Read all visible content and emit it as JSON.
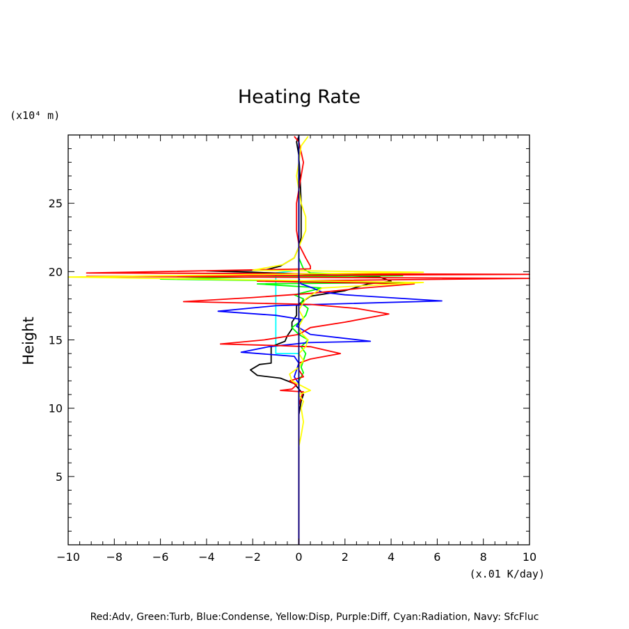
{
  "chart_data": {
    "type": "line",
    "title": "Heating Rate",
    "xlabel": "(x.01 K/day)",
    "ylabel": "Height",
    "y_unit": "(x10⁴ m)",
    "xlim": [
      -10,
      10
    ],
    "ylim": [
      0,
      30
    ],
    "x_ticks": [
      "−10",
      "−8",
      "−6",
      "−4",
      "−2",
      "0",
      "2",
      "4",
      "6",
      "8",
      "10"
    ],
    "y_ticks": [
      "5",
      "10",
      "15",
      "20",
      "25"
    ],
    "grid": false,
    "legend_caption": "Red:Adv, Green:Turb, Blue:Condense, Yellow:Disp, Purple:Diff, Cyan:Radiation, Navy: SfcFluc",
    "series": [
      {
        "color": "#00ffff",
        "points": [
          [
            0,
            0
          ],
          [
            0,
            14
          ],
          [
            -1.0,
            14
          ],
          [
            -1.0,
            19.9
          ],
          [
            0,
            20.1
          ],
          [
            0,
            30
          ]
        ]
      },
      {
        "color": "#000000",
        "points": [
          [
            0,
            0
          ],
          [
            0,
            9.5
          ],
          [
            0.1,
            10.5
          ],
          [
            0.2,
            11
          ],
          [
            0,
            11.4
          ],
          [
            -0.2,
            11.8
          ],
          [
            -0.8,
            12.2
          ],
          [
            -1.8,
            12.4
          ],
          [
            -2.1,
            12.8
          ],
          [
            -1.7,
            13.2
          ],
          [
            -1.2,
            13.3
          ],
          [
            -1.2,
            13.8
          ],
          [
            -1.2,
            14.5
          ],
          [
            -0.6,
            14.9
          ],
          [
            -0.5,
            15.3
          ],
          [
            -0.3,
            15.8
          ],
          [
            -0.3,
            16.3
          ],
          [
            -0.1,
            16.8
          ],
          [
            -0.1,
            17.5
          ],
          [
            0.5,
            18.2
          ],
          [
            2.0,
            18.6
          ],
          [
            3.0,
            19.1
          ],
          [
            4.0,
            19.3
          ],
          [
            3.5,
            19.6
          ],
          [
            0.5,
            19.8
          ],
          [
            -2.0,
            19.95
          ],
          [
            -4.0,
            20.05
          ],
          [
            -1.5,
            20.1
          ],
          [
            -0.8,
            20.4
          ],
          [
            -0.2,
            21.0
          ],
          [
            0,
            21.8
          ],
          [
            0.1,
            22.5
          ],
          [
            0.1,
            24
          ],
          [
            0.1,
            25
          ],
          [
            0.05,
            27
          ],
          [
            0,
            28.5
          ],
          [
            -0.1,
            29.5
          ],
          [
            0,
            29.9
          ]
        ]
      },
      {
        "color": "#00ff00",
        "points": [
          [
            0,
            0
          ],
          [
            0,
            11
          ],
          [
            0,
            12
          ],
          [
            0.2,
            12.6
          ],
          [
            0.1,
            13
          ],
          [
            0.2,
            13.5
          ],
          [
            0.3,
            14.0
          ],
          [
            0.1,
            14.5
          ],
          [
            0.4,
            15.0
          ],
          [
            0,
            15.4
          ],
          [
            -0.3,
            15.9
          ],
          [
            0.1,
            16.4
          ],
          [
            0.3,
            16.8
          ],
          [
            0.4,
            17.3
          ],
          [
            0.1,
            17.7
          ],
          [
            0.2,
            18.0
          ],
          [
            -0.2,
            18.3
          ],
          [
            1.0,
            18.8
          ],
          [
            -1.8,
            19.1
          ],
          [
            4.8,
            19.2
          ],
          [
            -6.0,
            19.45
          ],
          [
            -2.0,
            19.6
          ],
          [
            4.5,
            19.7
          ],
          [
            0.5,
            19.9
          ],
          [
            0.2,
            20.2
          ],
          [
            0,
            21
          ],
          [
            0,
            30
          ]
        ]
      },
      {
        "color": "#0000ff",
        "points": [
          [
            0,
            0
          ],
          [
            0,
            11.8
          ],
          [
            -0.2,
            12.3
          ],
          [
            -0.1,
            12.8
          ],
          [
            0,
            13.3
          ],
          [
            -0.2,
            13.8
          ],
          [
            -2.5,
            14.1
          ],
          [
            -1.3,
            14.5
          ],
          [
            0.4,
            14.8
          ],
          [
            3.1,
            14.9
          ],
          [
            0.5,
            15.4
          ],
          [
            -0.1,
            16.0
          ],
          [
            0.1,
            16.5
          ],
          [
            -1.0,
            16.8
          ],
          [
            -3.5,
            17.1
          ],
          [
            -1.0,
            17.5
          ],
          [
            0.8,
            17.6
          ],
          [
            6.2,
            17.85
          ],
          [
            2.0,
            18.3
          ],
          [
            1.0,
            18.5
          ],
          [
            0.6,
            18.8
          ],
          [
            0.1,
            19.1
          ],
          [
            0,
            19.5
          ],
          [
            0,
            20
          ],
          [
            0,
            21
          ],
          [
            0,
            30
          ]
        ]
      },
      {
        "color": "#ff0000",
        "points": [
          [
            0,
            0
          ],
          [
            0,
            10.2
          ],
          [
            0.1,
            10.8
          ],
          [
            0.2,
            11.2
          ],
          [
            -0.8,
            11.3
          ],
          [
            -0.3,
            11.4
          ],
          [
            -0.1,
            11.7
          ],
          [
            -0.4,
            12.0
          ],
          [
            0.2,
            12.3
          ],
          [
            0,
            12.8
          ],
          [
            0,
            13.3
          ],
          [
            0.5,
            13.6
          ],
          [
            1.8,
            14.0
          ],
          [
            0.5,
            14.5
          ],
          [
            -1.2,
            14.6
          ],
          [
            -3.4,
            14.7
          ],
          [
            -1.5,
            15.0
          ],
          [
            0,
            15.4
          ],
          [
            0.5,
            15.9
          ],
          [
            2.0,
            16.3
          ],
          [
            3.9,
            16.9
          ],
          [
            2.5,
            17.3
          ],
          [
            0.5,
            17.6
          ],
          [
            -5.0,
            17.8
          ],
          [
            -2.0,
            18.1
          ],
          [
            0.5,
            18.4
          ],
          [
            2.8,
            18.8
          ],
          [
            5.0,
            19.1
          ],
          [
            -1.8,
            19.3
          ],
          [
            10.0,
            19.5
          ],
          [
            -9.2,
            19.65
          ],
          [
            10.0,
            19.8
          ],
          [
            -9.2,
            19.9
          ],
          [
            0.5,
            20.2
          ],
          [
            0.5,
            20.4
          ],
          [
            0.3,
            21
          ],
          [
            0,
            22
          ],
          [
            -0.1,
            23
          ],
          [
            -0.1,
            25
          ],
          [
            0.1,
            27
          ],
          [
            0.2,
            28
          ],
          [
            0,
            29.5
          ],
          [
            -0.2,
            29.9
          ]
        ]
      },
      {
        "color": "#ffff00",
        "points": [
          [
            0,
            7.2
          ],
          [
            0.1,
            8
          ],
          [
            0.2,
            9
          ],
          [
            0.1,
            10
          ],
          [
            0.2,
            10.5
          ],
          [
            0,
            11
          ],
          [
            0.5,
            11.3
          ],
          [
            -0.3,
            12.0
          ],
          [
            -0.4,
            12.5
          ],
          [
            0,
            13
          ],
          [
            0.2,
            13.5
          ],
          [
            0,
            14.0
          ],
          [
            0.3,
            14.5
          ],
          [
            0.4,
            15
          ],
          [
            0.1,
            15.5
          ],
          [
            0,
            16
          ],
          [
            0.2,
            16.6
          ],
          [
            0,
            17.2
          ],
          [
            0.3,
            18
          ],
          [
            1.0,
            18.8
          ],
          [
            5.4,
            19.2
          ],
          [
            -10.0,
            19.6
          ],
          [
            5.4,
            19.95
          ],
          [
            -2.0,
            20.1
          ],
          [
            -0.7,
            20.5
          ],
          [
            -0.2,
            21
          ],
          [
            0,
            21.8
          ],
          [
            0.3,
            23
          ],
          [
            0.3,
            24
          ],
          [
            0.1,
            25
          ],
          [
            0,
            26
          ],
          [
            -0.1,
            27
          ],
          [
            0,
            28
          ],
          [
            0.1,
            29.2
          ],
          [
            0.4,
            29.9
          ]
        ]
      },
      {
        "color": "#000080",
        "points": [
          [
            0,
            0
          ],
          [
            0,
            30
          ]
        ]
      }
    ]
  }
}
